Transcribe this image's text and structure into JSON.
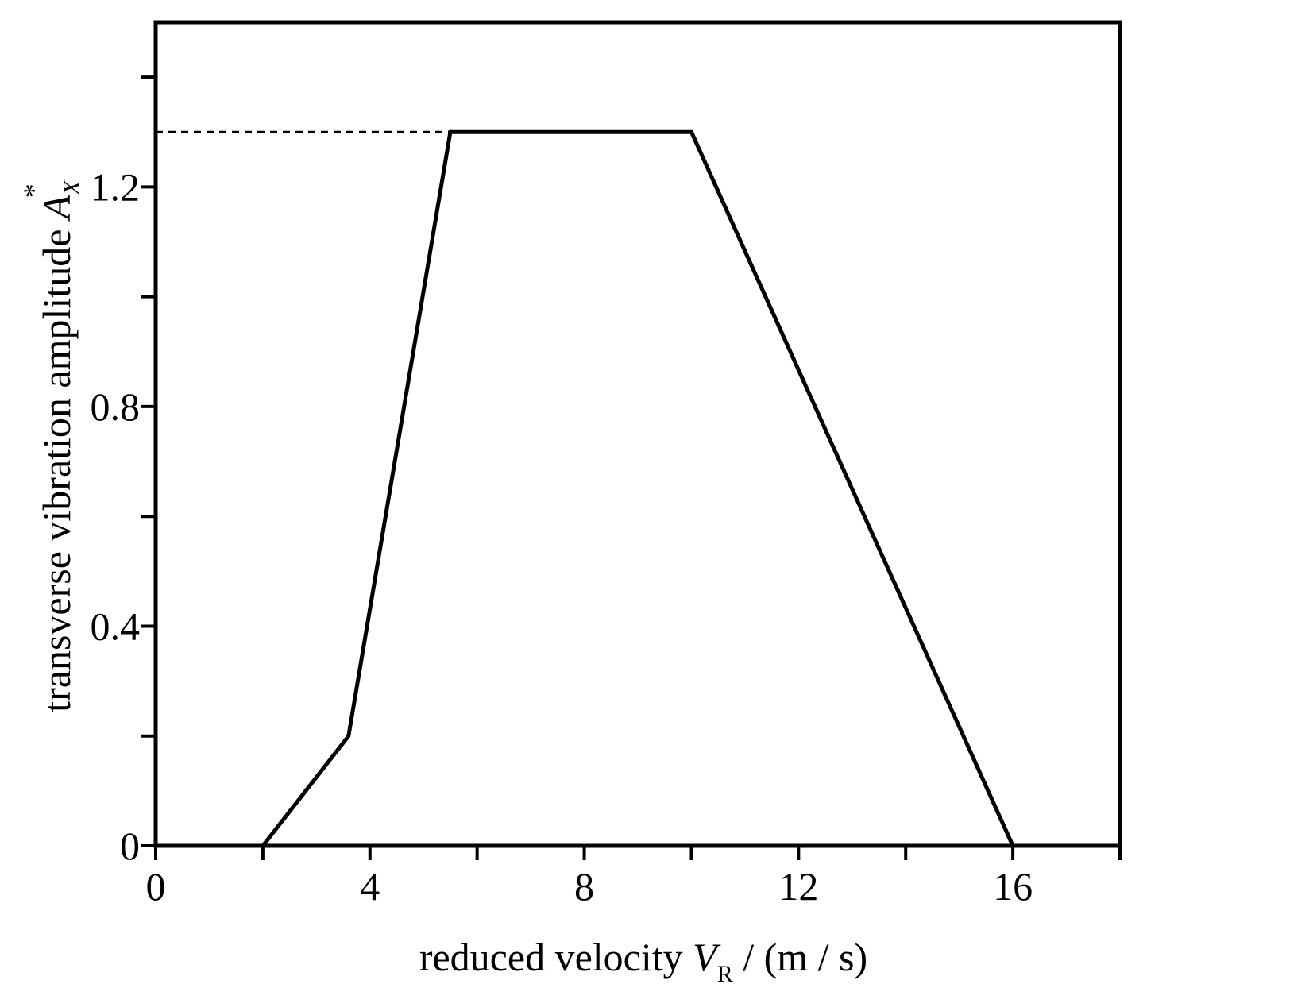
{
  "chart_data": {
    "type": "line",
    "title": "",
    "xlabel": {
      "prefix": "reduced velocity ",
      "var": "V",
      "sub": "R",
      "unit": " / (m / s)"
    },
    "ylabel": {
      "prefix": "transverse vibration amplitude ",
      "var": "A",
      "sub": "X",
      "sup": "*"
    },
    "xlim": [
      0,
      18
    ],
    "ylim": [
      0,
      1.5
    ],
    "x_ticks": [
      0,
      4,
      8,
      12,
      16
    ],
    "x_tick_labels": [
      "0",
      "4",
      "8",
      "12",
      "16"
    ],
    "x_minor_ticks": [
      2,
      6,
      10,
      14,
      18
    ],
    "y_ticks": [
      0,
      0.4,
      0.8,
      1.2
    ],
    "y_tick_labels": [
      "0",
      "0.4",
      "0.8",
      "1.2"
    ],
    "y_minor_ticks": [
      0.2,
      0.6,
      1.0,
      1.4
    ],
    "grid": false,
    "series": [
      {
        "style": "solid",
        "color": "#000000",
        "x": [
          2.0,
          3.6,
          5.5,
          10.0,
          16.0
        ],
        "y": [
          0.0,
          0.2,
          1.3,
          1.3,
          0.0
        ]
      }
    ],
    "reference_line": {
      "style": "dashed",
      "y": 1.3,
      "x_from": 0,
      "x_to": 5.5
    }
  }
}
